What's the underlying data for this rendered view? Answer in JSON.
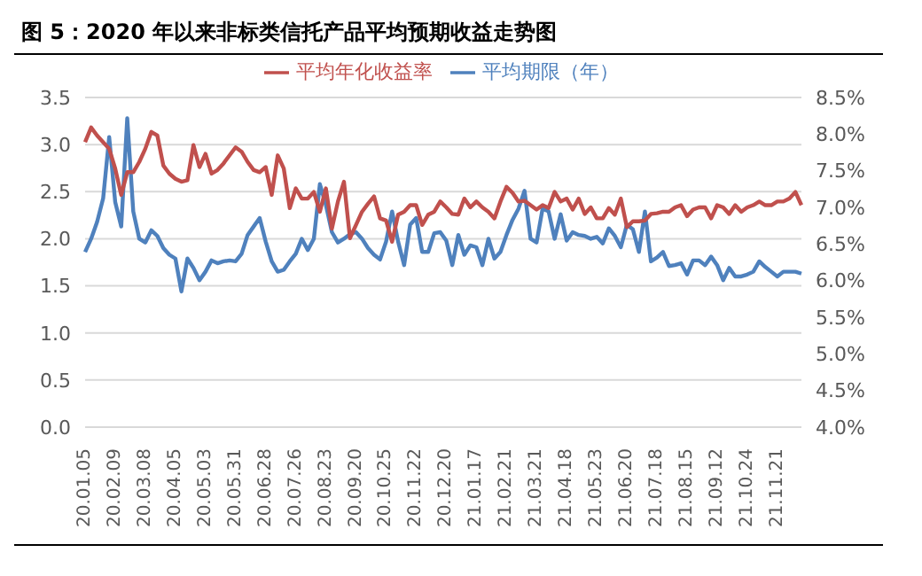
{
  "chart_data": {
    "type": "line",
    "title": "图 5：2020 年以来非标类信托产品平均预期收益走势图",
    "categories": [
      "20.01.05",
      null,
      null,
      null,
      null,
      "20.02.09",
      null,
      null,
      null,
      null,
      "20.03.08",
      null,
      null,
      null,
      null,
      "20.04.05",
      null,
      null,
      null,
      null,
      "20.05.03",
      null,
      null,
      null,
      null,
      "20.05.31",
      null,
      null,
      null,
      null,
      "20.06.28",
      null,
      null,
      null,
      null,
      "20.07.26",
      null,
      null,
      null,
      null,
      "20.08.23",
      null,
      null,
      null,
      null,
      "20.09.20",
      null,
      null,
      null,
      null,
      "20.10.25",
      null,
      null,
      null,
      null,
      "20.11.22",
      null,
      null,
      null,
      null,
      "20.12.20",
      null,
      null,
      null,
      null,
      "21.01.17",
      null,
      null,
      null,
      null,
      "21.02.21",
      null,
      null,
      null,
      null,
      "21.03.21",
      null,
      null,
      null,
      null,
      "21.04.18",
      null,
      null,
      null,
      null,
      "21.05.23",
      null,
      null,
      null,
      null,
      "21.06.20",
      null,
      null,
      null,
      null,
      "21.07.18",
      null,
      null,
      null,
      null,
      "21.08.15",
      null,
      null,
      null,
      null,
      "21.09.12",
      null,
      null,
      null,
      null,
      "21.10.24",
      null,
      null,
      null,
      null,
      "21.11.21",
      null,
      null,
      null,
      null
    ],
    "series": [
      {
        "name": "平均期限（年）",
        "color": "#4f81bd",
        "values": [
          1.86,
          2.0,
          2.18,
          2.43,
          3.08,
          2.39,
          2.13,
          3.28,
          2.29,
          2.0,
          1.96,
          2.09,
          2.03,
          1.9,
          1.83,
          1.79,
          1.44,
          1.79,
          1.69,
          1.56,
          1.65,
          1.77,
          1.74,
          1.76,
          1.77,
          1.76,
          1.84,
          2.04,
          2.13,
          2.22,
          1.97,
          1.76,
          1.65,
          1.67,
          1.76,
          1.84,
          2.0,
          1.88,
          2.0,
          2.58,
          2.36,
          2.07,
          1.96,
          2.0,
          2.05,
          2.07,
          2.0,
          1.9,
          1.83,
          1.78,
          1.97,
          2.29,
          1.97,
          1.72,
          2.15,
          2.22,
          1.86,
          1.86,
          2.06,
          2.07,
          1.98,
          1.72,
          2.04,
          1.83,
          1.93,
          1.91,
          1.72,
          2.0,
          1.79,
          1.86,
          2.04,
          2.2,
          2.32,
          2.51,
          2.0,
          1.96,
          2.32,
          2.29,
          2.0,
          2.26,
          1.98,
          2.07,
          2.04,
          2.03,
          2.0,
          2.02,
          1.95,
          2.11,
          2.03,
          1.91,
          2.15,
          2.1,
          1.86,
          2.29,
          1.76,
          1.8,
          1.86,
          1.71,
          1.72,
          1.74,
          1.62,
          1.77,
          1.77,
          1.72,
          1.81,
          1.72,
          1.56,
          1.69,
          1.6,
          1.6,
          1.62,
          1.65,
          1.76,
          1.7,
          1.65,
          1.6,
          1.65,
          1.65,
          1.65,
          1.63
        ]
      },
      {
        "name": "平均年化收益率",
        "color": "#c0504d",
        "axis": "y2",
        "values": [
          7.89,
          8.09,
          7.98,
          7.89,
          7.8,
          7.53,
          7.17,
          7.48,
          7.48,
          7.62,
          7.8,
          8.03,
          7.98,
          7.57,
          7.46,
          7.39,
          7.35,
          7.37,
          7.85,
          7.55,
          7.73,
          7.46,
          7.51,
          7.6,
          7.71,
          7.82,
          7.76,
          7.62,
          7.51,
          7.48,
          7.55,
          7.17,
          7.71,
          7.53,
          6.99,
          7.26,
          7.12,
          7.12,
          7.21,
          6.94,
          7.26,
          6.71,
          7.08,
          7.35,
          6.58,
          6.76,
          6.94,
          7.05,
          7.15,
          6.85,
          6.82,
          6.53,
          6.9,
          6.94,
          7.03,
          7.03,
          6.76,
          6.9,
          6.94,
          7.08,
          7.0,
          6.91,
          6.9,
          7.12,
          7.0,
          7.08,
          7.0,
          6.94,
          6.85,
          7.08,
          7.28,
          7.2,
          7.08,
          7.09,
          7.03,
          6.97,
          7.03,
          6.99,
          7.21,
          7.08,
          7.12,
          6.97,
          7.12,
          6.91,
          7.0,
          6.85,
          6.85,
          6.99,
          6.9,
          7.12,
          6.73,
          6.81,
          6.81,
          6.82,
          6.91,
          6.92,
          6.94,
          6.94,
          7.0,
          7.03,
          6.88,
          6.97,
          7.0,
          7.0,
          6.85,
          7.03,
          7.0,
          6.91,
          7.03,
          6.94,
          7.0,
          7.03,
          7.08,
          7.03,
          7.03,
          7.08,
          7.08,
          7.12,
          7.21,
          7.03
        ]
      }
    ],
    "ylim": [
      0,
      3.5
    ],
    "yticks": [
      {
        "value": 0,
        "label": "0.0"
      },
      {
        "value": 0.5,
        "label": "0.5"
      },
      {
        "value": 1,
        "label": "1.0"
      },
      {
        "value": 1.5,
        "label": "1.5"
      },
      {
        "value": 2,
        "label": "2.0"
      },
      {
        "value": 2.5,
        "label": "2.5"
      },
      {
        "value": 3,
        "label": "3.0"
      },
      {
        "value": 3.5,
        "label": "3.5"
      }
    ],
    "y2lim": [
      4,
      8.5
    ],
    "y2ticks": [
      {
        "value": 4,
        "label": "4.0%"
      },
      {
        "value": 4.5,
        "label": "4.5%"
      },
      {
        "value": 5,
        "label": "5.0%"
      },
      {
        "value": 5.5,
        "label": "5.5%"
      },
      {
        "value": 6,
        "label": "6.0%"
      },
      {
        "value": 6.5,
        "label": "6.5%"
      },
      {
        "value": 7,
        "label": "7.0%"
      },
      {
        "value": 7.5,
        "label": "7.5%"
      },
      {
        "value": 8,
        "label": "8.0%"
      },
      {
        "value": 8.5,
        "label": "8.5%"
      }
    ],
    "grid": "y",
    "legend": "top",
    "marker": "none",
    "line_style": "solid"
  }
}
